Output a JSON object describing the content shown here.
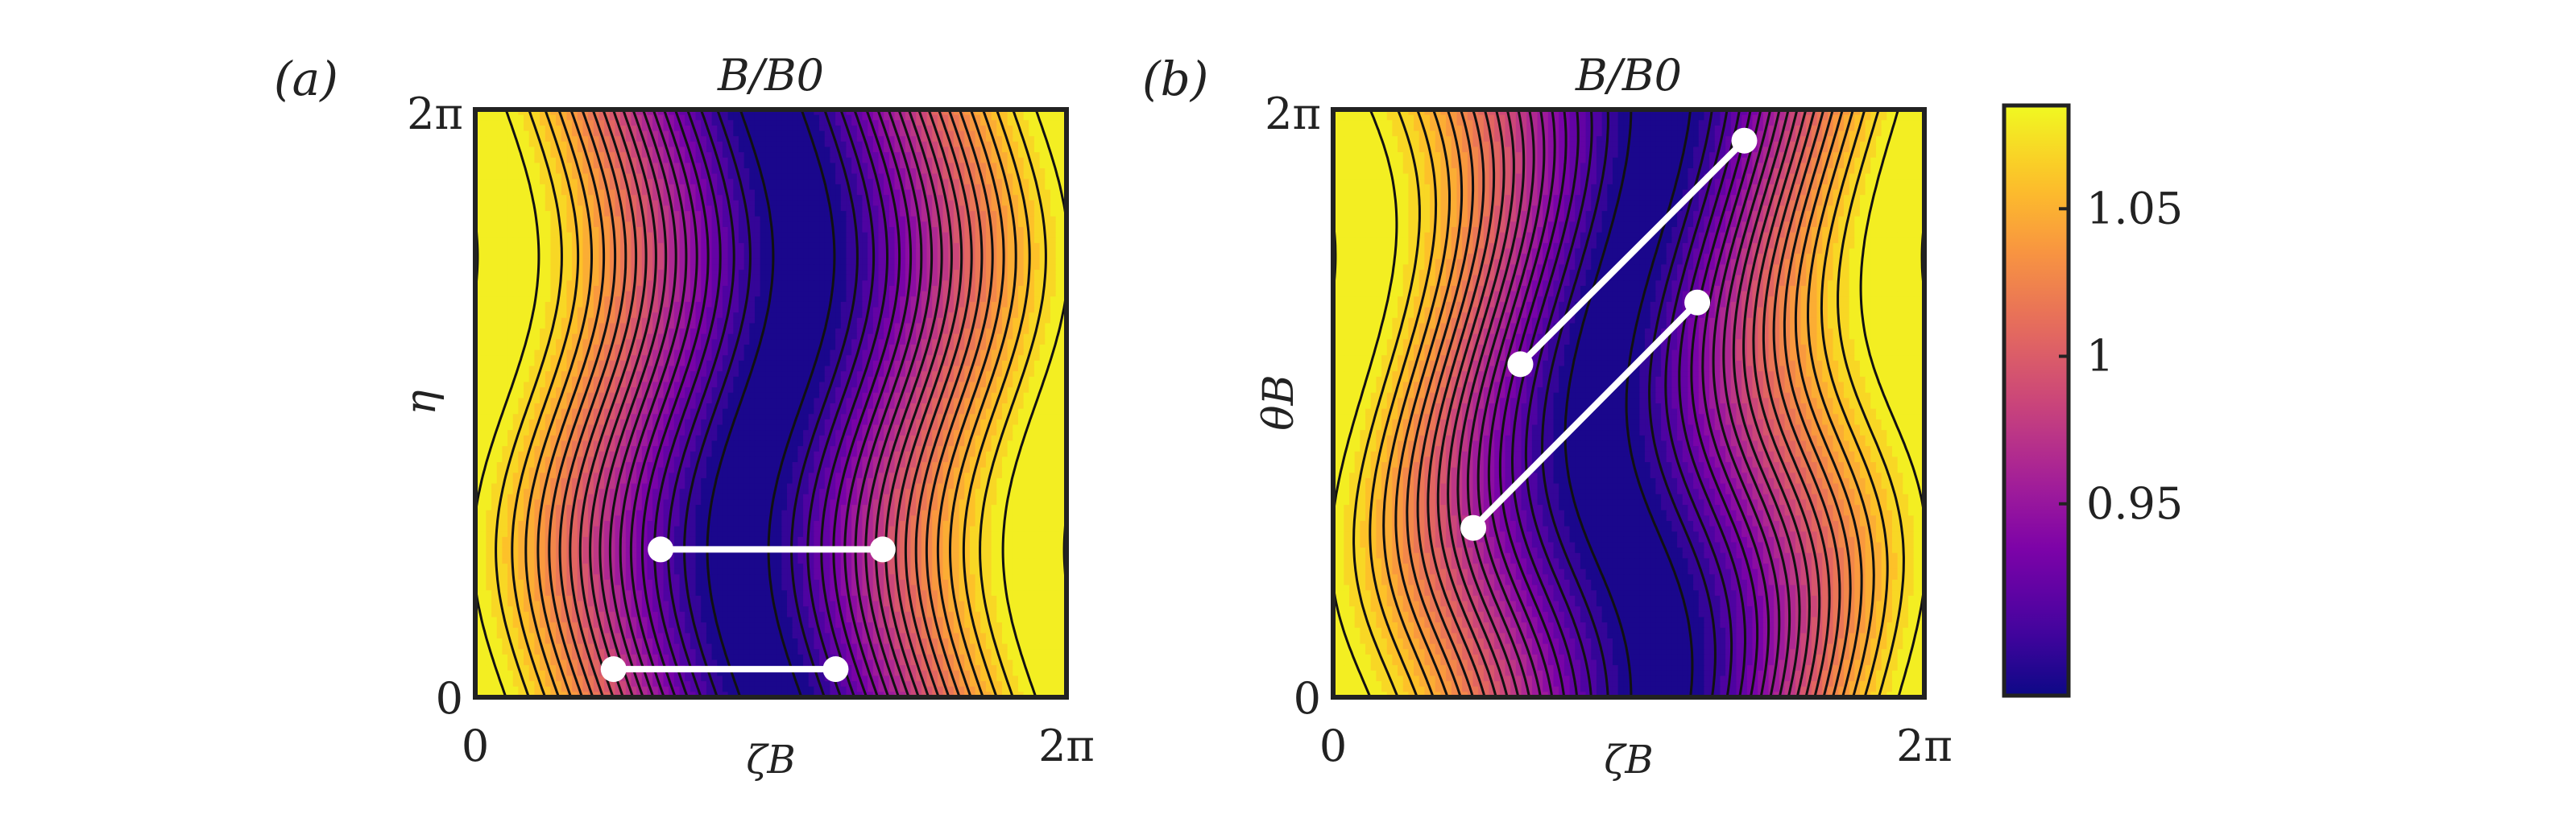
{
  "chart_data": [
    {
      "type": "heatmap",
      "panel_label": "(a)",
      "title": "B/B0",
      "xlabel": "ζB",
      "ylabel": "η",
      "x_tick_labels": [
        "0",
        "2π"
      ],
      "y_tick_labels": [
        "0",
        "2π"
      ],
      "xlim": [
        0,
        6.2832
      ],
      "ylim": [
        0,
        6.2832
      ],
      "field": {
        "kind": "omnigenous_aligned",
        "mean": 0.985,
        "amplitude": 0.1,
        "wave": 0.35
      },
      "contour_levels": 19,
      "segments": [
        {
          "start": [
            1.47,
            0.3
          ],
          "end": [
            3.83,
            0.3
          ]
        },
        {
          "start": [
            1.97,
            1.58
          ],
          "end": [
            4.33,
            1.58
          ]
        }
      ]
    },
    {
      "type": "heatmap",
      "panel_label": "(b)",
      "title": "B/B0",
      "xlabel": "ζB",
      "ylabel": "θB",
      "x_tick_labels": [
        "0",
        "2π"
      ],
      "y_tick_labels": [
        "0",
        "2π"
      ],
      "xlim": [
        0,
        6.2832
      ],
      "ylim": [
        0,
        6.2832
      ],
      "field": {
        "kind": "omnigenous_tilted",
        "mean": 0.985,
        "amplitude": 0.1,
        "wave": 0.35,
        "tilt": 0.5
      },
      "contour_levels": 19,
      "segments": [
        {
          "start": [
            1.49,
            1.81
          ],
          "end": [
            3.87,
            4.22
          ]
        },
        {
          "start": [
            1.99,
            3.56
          ],
          "end": [
            4.37,
            5.95
          ]
        }
      ]
    }
  ],
  "colorbar": {
    "range": [
      0.885,
      1.085
    ],
    "tick_values": [
      0.95,
      1.0,
      1.05
    ],
    "tick_labels": [
      "0.95",
      "1",
      "1.05"
    ],
    "colormap": "plasma"
  },
  "colors": {
    "frame": "#222222",
    "contour": "#111111",
    "segment": "#ffffff"
  }
}
